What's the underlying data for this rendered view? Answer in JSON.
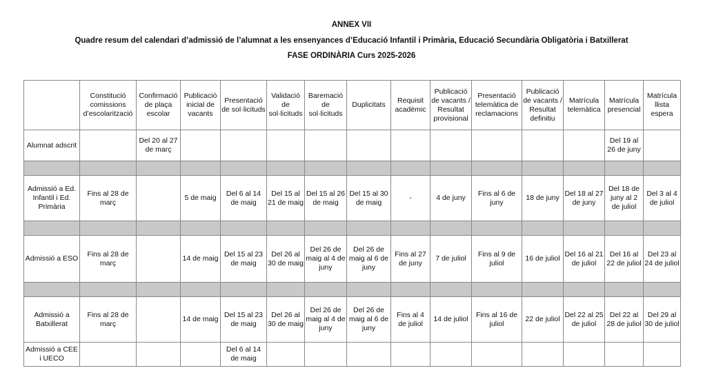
{
  "title": "ANNEX VII",
  "subtitle": "Quadre resum del calendari d’admissió de l’alumnat a les ensenyances d’Educació Infantil i Primària, Educació Secundària Obligatòria i Batxillerat",
  "phase": "FASE ORDINÀRIA Curs 2025-2026",
  "table": {
    "headers": [
      "",
      "Constitució comissions d’escolarització",
      "Confirmació de plaça escolar",
      "Publicació inicial de vacants",
      "Presentació de sol·licituds",
      "Validació de sol·licituds",
      "Baremació de sol·licituds",
      "Duplicitats",
      "Requisit acadèmic",
      "Publicació de vacants / Resultat provisional",
      "Presentació telemàtica de reclamacions",
      "Publicació de vacants / Resultat definitiu",
      "Matrícula telemàtica",
      "Matrícula presencial",
      "Matrícula llista espera"
    ],
    "rows": [
      [
        "Alumnat adscrit",
        "",
        "Del 20 al 27 de març",
        "",
        "",
        "",
        "",
        "",
        "",
        "",
        "",
        "",
        "",
        "Del 19 al 26 de juny",
        ""
      ],
      [
        "Admissió a Ed. Infantil i Ed. Primària",
        "Fins al 28 de març",
        "",
        "5 de maig",
        "Del 6 al 14 de maig",
        "Del 15 al 21 de maig",
        "Del 15 al 26 de maig",
        "Del 15 al 30 de maig",
        "-",
        "4 de juny",
        "Fins al 6 de juny",
        "18 de juny",
        "Del 18 al 27 de juny",
        "Del 18 de juny al 2 de juliol",
        "Del 3 al 4 de juliol"
      ],
      [
        "Admissió a ESO",
        "Fins al 28 de març",
        "",
        "14 de maig",
        "Del 15 al 23 de maig",
        "Del 26 al 30 de maig",
        "Del 26 de maig al 4 de juny",
        "Del 26 de maig al 6 de juny",
        "Fins al 27 de juny",
        "7 de juliol",
        "Fins al 9 de juliol",
        "16 de juliol",
        "Del 16 al 21 de juliol",
        "Del 16 al 22 de juliol",
        "Del 23 al 24 de juliol"
      ],
      [
        "Admissió a Batxillerat",
        "Fins al 28 de març",
        "",
        "14 de maig",
        "Del 15 al 23 de maig",
        "Del 26 al 30 de maig",
        "Del 26 de maig al 4 de juny",
        "Del 26 de maig al 6 de juny",
        "Fins al 4 de juliol",
        "14 de juliol",
        "Fins al 16 de juliol",
        "22 de juliol",
        "Del 22 al 25 de juliol",
        "Del 22 al 28 de juliol",
        "Del 29 al 30 de juliol"
      ],
      [
        "Admissió a CEE i UECO",
        "",
        "",
        "",
        "Del 6 al 14 de maig",
        "",
        "",
        "",
        "",
        "",
        "",
        "",
        "",
        "",
        ""
      ]
    ]
  }
}
